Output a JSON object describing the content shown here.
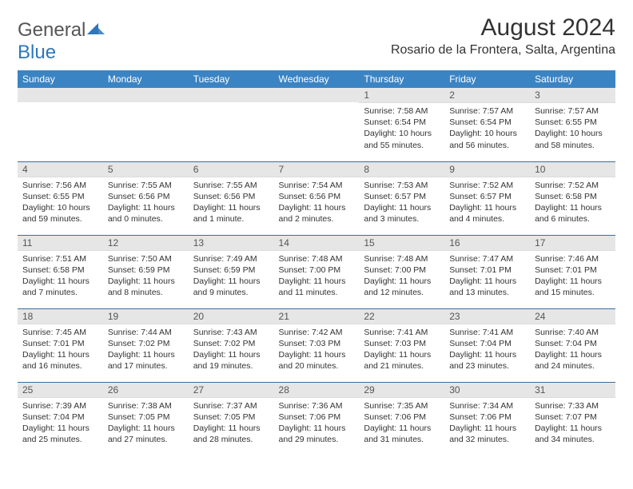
{
  "logo": {
    "text1": "General",
    "text2": "Blue",
    "color1": "#707070",
    "color2": "#2e77b8",
    "icon_color": "#2e77b8"
  },
  "header": {
    "month_title": "August 2024",
    "location": "Rosario de la Frontera, Salta, Argentina"
  },
  "style": {
    "header_bg": "#3b84c4",
    "header_fg": "#ffffff",
    "daynum_bg": "#e6e6e6",
    "row_border": "#3b6ea0",
    "text_color": "#333333",
    "body_font_size": 10.5,
    "header_font_size": 12,
    "title_font_size": 30,
    "location_font_size": 16
  },
  "day_labels": [
    "Sunday",
    "Monday",
    "Tuesday",
    "Wednesday",
    "Thursday",
    "Friday",
    "Saturday"
  ],
  "weeks": [
    [
      null,
      null,
      null,
      null,
      {
        "n": "1",
        "sr": "7:58 AM",
        "ss": "6:54 PM",
        "dl": "10 hours and 55 minutes."
      },
      {
        "n": "2",
        "sr": "7:57 AM",
        "ss": "6:54 PM",
        "dl": "10 hours and 56 minutes."
      },
      {
        "n": "3",
        "sr": "7:57 AM",
        "ss": "6:55 PM",
        "dl": "10 hours and 58 minutes."
      }
    ],
    [
      {
        "n": "4",
        "sr": "7:56 AM",
        "ss": "6:55 PM",
        "dl": "10 hours and 59 minutes."
      },
      {
        "n": "5",
        "sr": "7:55 AM",
        "ss": "6:56 PM",
        "dl": "11 hours and 0 minutes."
      },
      {
        "n": "6",
        "sr": "7:55 AM",
        "ss": "6:56 PM",
        "dl": "11 hours and 1 minute."
      },
      {
        "n": "7",
        "sr": "7:54 AM",
        "ss": "6:56 PM",
        "dl": "11 hours and 2 minutes."
      },
      {
        "n": "8",
        "sr": "7:53 AM",
        "ss": "6:57 PM",
        "dl": "11 hours and 3 minutes."
      },
      {
        "n": "9",
        "sr": "7:52 AM",
        "ss": "6:57 PM",
        "dl": "11 hours and 4 minutes."
      },
      {
        "n": "10",
        "sr": "7:52 AM",
        "ss": "6:58 PM",
        "dl": "11 hours and 6 minutes."
      }
    ],
    [
      {
        "n": "11",
        "sr": "7:51 AM",
        "ss": "6:58 PM",
        "dl": "11 hours and 7 minutes."
      },
      {
        "n": "12",
        "sr": "7:50 AM",
        "ss": "6:59 PM",
        "dl": "11 hours and 8 minutes."
      },
      {
        "n": "13",
        "sr": "7:49 AM",
        "ss": "6:59 PM",
        "dl": "11 hours and 9 minutes."
      },
      {
        "n": "14",
        "sr": "7:48 AM",
        "ss": "7:00 PM",
        "dl": "11 hours and 11 minutes."
      },
      {
        "n": "15",
        "sr": "7:48 AM",
        "ss": "7:00 PM",
        "dl": "11 hours and 12 minutes."
      },
      {
        "n": "16",
        "sr": "7:47 AM",
        "ss": "7:01 PM",
        "dl": "11 hours and 13 minutes."
      },
      {
        "n": "17",
        "sr": "7:46 AM",
        "ss": "7:01 PM",
        "dl": "11 hours and 15 minutes."
      }
    ],
    [
      {
        "n": "18",
        "sr": "7:45 AM",
        "ss": "7:01 PM",
        "dl": "11 hours and 16 minutes."
      },
      {
        "n": "19",
        "sr": "7:44 AM",
        "ss": "7:02 PM",
        "dl": "11 hours and 17 minutes."
      },
      {
        "n": "20",
        "sr": "7:43 AM",
        "ss": "7:02 PM",
        "dl": "11 hours and 19 minutes."
      },
      {
        "n": "21",
        "sr": "7:42 AM",
        "ss": "7:03 PM",
        "dl": "11 hours and 20 minutes."
      },
      {
        "n": "22",
        "sr": "7:41 AM",
        "ss": "7:03 PM",
        "dl": "11 hours and 21 minutes."
      },
      {
        "n": "23",
        "sr": "7:41 AM",
        "ss": "7:04 PM",
        "dl": "11 hours and 23 minutes."
      },
      {
        "n": "24",
        "sr": "7:40 AM",
        "ss": "7:04 PM",
        "dl": "11 hours and 24 minutes."
      }
    ],
    [
      {
        "n": "25",
        "sr": "7:39 AM",
        "ss": "7:04 PM",
        "dl": "11 hours and 25 minutes."
      },
      {
        "n": "26",
        "sr": "7:38 AM",
        "ss": "7:05 PM",
        "dl": "11 hours and 27 minutes."
      },
      {
        "n": "27",
        "sr": "7:37 AM",
        "ss": "7:05 PM",
        "dl": "11 hours and 28 minutes."
      },
      {
        "n": "28",
        "sr": "7:36 AM",
        "ss": "7:06 PM",
        "dl": "11 hours and 29 minutes."
      },
      {
        "n": "29",
        "sr": "7:35 AM",
        "ss": "7:06 PM",
        "dl": "11 hours and 31 minutes."
      },
      {
        "n": "30",
        "sr": "7:34 AM",
        "ss": "7:06 PM",
        "dl": "11 hours and 32 minutes."
      },
      {
        "n": "31",
        "sr": "7:33 AM",
        "ss": "7:07 PM",
        "dl": "11 hours and 34 minutes."
      }
    ]
  ],
  "labels": {
    "sunrise": "Sunrise:",
    "sunset": "Sunset:",
    "daylight": "Daylight:"
  }
}
